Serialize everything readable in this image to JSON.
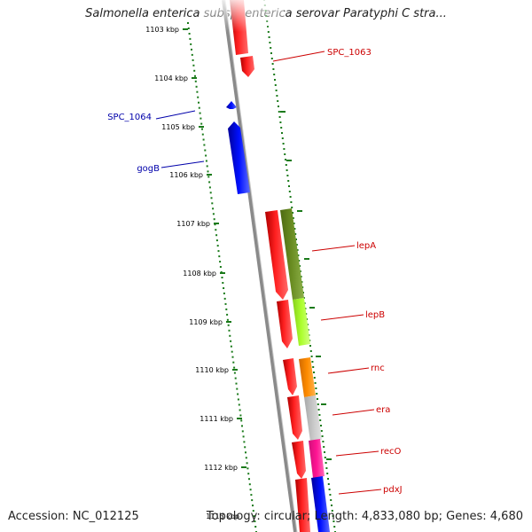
{
  "title": "Salmonella enterica subsp. enterica serovar Paratyphi C stra...",
  "footer": {
    "accession": "Accession: NC_012125",
    "topology": "Topology: circular; Length: 4,833,080 bp; Genes: 4,680"
  },
  "ruler": {
    "labels": [
      "1103 kbp",
      "1104 kbp",
      "1105 kbp",
      "1106 kbp",
      "1107 kbp",
      "1108 kbp",
      "1109 kbp",
      "1110 kbp",
      "1111 kbp",
      "1112 kbp",
      "1113 kbp"
    ]
  },
  "genes": {
    "SPC_1063": "SPC_1063",
    "SPC_1064": "SPC_1064",
    "gogB": "gogB",
    "lepA": "lepA",
    "lepB": "lepB",
    "rnc": "rnc",
    "era": "era",
    "recO": "recO",
    "pdxJ": "pdxJ"
  },
  "colors": {
    "forward_label": "#cc0000",
    "reverse_label": "#0000aa",
    "tick": "#1a7a1a",
    "backbone": "#8a8a8a",
    "gene_red": "#ff0000",
    "gene_blue": "#0000ff",
    "cog_olive": "#6b8e23",
    "cog_lime": "#adff2f",
    "cog_orange": "#ff8c00",
    "cog_grey": "#c0c0c0",
    "cog_pink": "#ff1493",
    "cog_blue": "#0000ff"
  }
}
